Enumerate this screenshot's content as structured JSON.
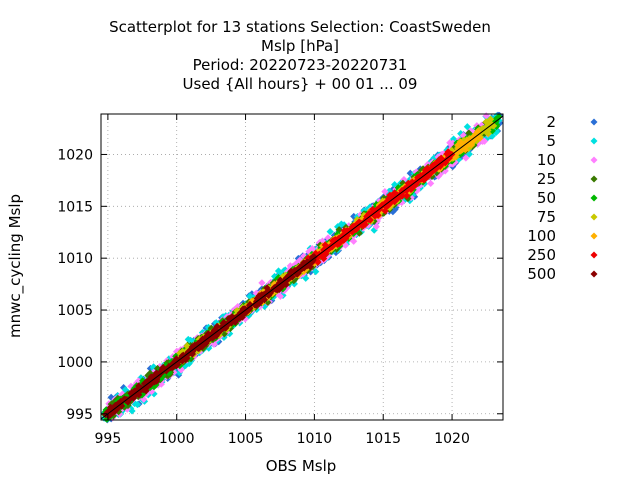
{
  "chart_data": {
    "type": "scatter",
    "title_lines": [
      "Scatterplot for   13 stations Selection: CoastSweden",
      "Mslp [hPa]",
      "Period: 20220723-20220731",
      "Used {All hours} + 00 01 ... 09"
    ],
    "xlabel": "OBS Mslp",
    "ylabel": "mnwc_cycling Mslp",
    "xlim": [
      994.5,
      1023.7
    ],
    "ylim": [
      994.4,
      1023.9
    ],
    "xticks": [
      995,
      1000,
      1005,
      1010,
      1015,
      1020
    ],
    "yticks": [
      995,
      1000,
      1005,
      1010,
      1015,
      1020
    ],
    "grid": true,
    "legend_position": "right",
    "series": [
      {
        "name": "2",
        "color": "#2a6fd6"
      },
      {
        "name": "5",
        "color": "#00e0e0"
      },
      {
        "name": "10",
        "color": "#ff80ff"
      },
      {
        "name": "25",
        "color": "#3a7a00"
      },
      {
        "name": "50",
        "color": "#00b800"
      },
      {
        "name": "75",
        "color": "#c8c800"
      },
      {
        "name": "100",
        "color": "#ffb000"
      },
      {
        "name": "250",
        "color": "#ee0000"
      },
      {
        "name": "500",
        "color": "#8b0000"
      }
    ],
    "ranges": [
      {
        "series": "2",
        "x": [
          994.8,
          1023.4
        ],
        "spread": 0.9
      },
      {
        "series": "5",
        "x": [
          994.8,
          1023.4
        ],
        "spread": 1.0
      },
      {
        "series": "10",
        "x": [
          995.0,
          1022.8
        ],
        "spread": 0.9
      },
      {
        "series": "25",
        "x": [
          994.8,
          1022.5
        ],
        "spread": 0.6
      },
      {
        "series": "50",
        "x": [
          994.8,
          1023.4
        ],
        "spread": 0.5
      },
      {
        "series": "75",
        "x": [
          1000.0,
          1023.0
        ],
        "spread": 0.4
      },
      {
        "series": "100",
        "x": [
          1005.0,
          1022.0
        ],
        "spread": 0.35
      },
      {
        "series": "250",
        "x": [
          1009.5,
          1020.0
        ],
        "spread": 0.4
      },
      {
        "series": "500",
        "x": [
          995.0,
          1010.0
        ],
        "spread": 0.35
      }
    ],
    "reference_line": "y = x"
  }
}
